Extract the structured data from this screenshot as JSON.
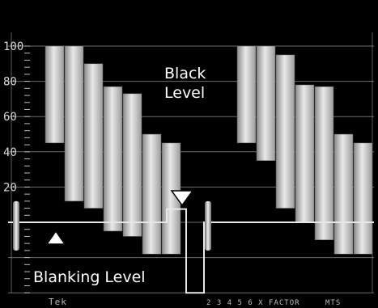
{
  "chart_data": {
    "type": "area",
    "title": "",
    "ylabel": "",
    "xlabel": "",
    "ylim": [
      -45,
      110
    ],
    "grid": true,
    "graticule_lines": [
      100,
      80,
      60,
      40,
      20,
      0,
      -20,
      -40
    ],
    "y_tick_labels": [
      "100",
      "80",
      "60",
      "40",
      "20"
    ],
    "annotations": {
      "black_level": [
        "Black",
        "Level"
      ],
      "blanking_level": "Blanking Level"
    },
    "footer": {
      "brand": "Tek",
      "text": "2 3 4 5 6  X FACTOR",
      "code": "MTS"
    },
    "fields": [
      {
        "bars": [
          {
            "top": 100,
            "bottom": 45
          },
          {
            "top": 100,
            "bottom": 12
          },
          {
            "top": 90,
            "bottom": 8
          },
          {
            "top": 77,
            "bottom": -5
          },
          {
            "top": 73,
            "bottom": -8
          },
          {
            "top": 50,
            "bottom": -18
          },
          {
            "top": 45,
            "bottom": -18
          }
        ],
        "blanking_level": 0,
        "setup_level": 7.5,
        "sync_tip": -40
      },
      {
        "bars": [
          {
            "top": 100,
            "bottom": 45
          },
          {
            "top": 100,
            "bottom": 35
          },
          {
            "top": 95,
            "bottom": 8
          },
          {
            "top": 78,
            "bottom": 0
          },
          {
            "top": 77,
            "bottom": -10
          },
          {
            "top": 50,
            "bottom": -18
          },
          {
            "top": 45,
            "bottom": -18
          }
        ],
        "blanking_level": 0,
        "setup_level": 7.5,
        "sync_tip": -40
      }
    ],
    "colors": {
      "background": "#000000",
      "graticule": "#9a9a9a",
      "trace": "#e8e8e8",
      "text": "#ffffff"
    }
  }
}
